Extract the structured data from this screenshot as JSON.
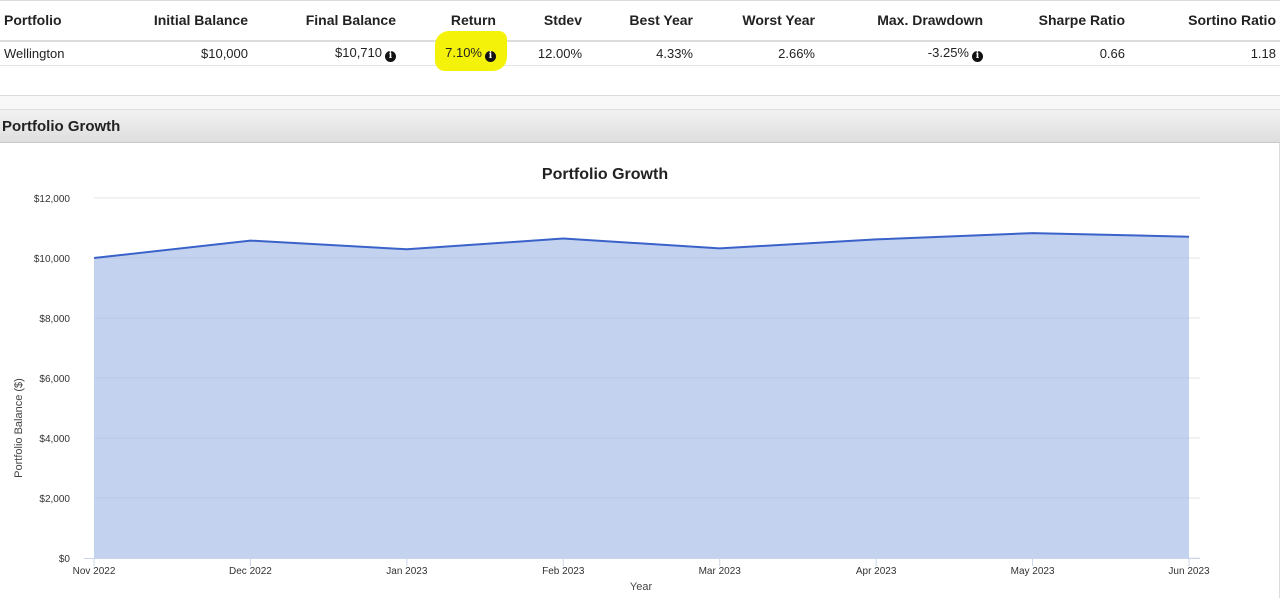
{
  "table": {
    "headers": [
      "Portfolio",
      "Initial Balance",
      "Final Balance",
      "Return",
      "Stdev",
      "Best Year",
      "Worst Year",
      "Max. Drawdown",
      "Sharpe Ratio",
      "Sortino Ratio"
    ],
    "row": {
      "portfolio": "Wellington",
      "initial_balance": "$10,000",
      "final_balance": "$10,710",
      "return": "7.10%",
      "stdev": "12.00%",
      "best_year": "4.33%",
      "worst_year": "2.66%",
      "max_drawdown": "-3.25%",
      "sharpe_ratio": "0.66",
      "sortino_ratio": "1.18"
    },
    "info_glyph": "i"
  },
  "section": {
    "title": "Portfolio Growth"
  },
  "colors": {
    "line": "#3a62c9",
    "area": "#c2d2ef",
    "highlight": "#f5f20a"
  },
  "chart_data": {
    "type": "area",
    "title": "Portfolio Growth",
    "xlabel": "Year",
    "ylabel": "Portfolio Balance ($)",
    "x": [
      "Nov 2022",
      "Dec 2022",
      "Jan 2023",
      "Feb 2023",
      "Mar 2023",
      "Apr 2023",
      "May 2023",
      "Jun 2023"
    ],
    "series": [
      {
        "name": "Wellington",
        "values": [
          10000,
          10580,
          10290,
          10650,
          10320,
          10620,
          10830,
          10710
        ]
      }
    ],
    "ylim": [
      0,
      12000
    ],
    "yticks": [
      0,
      2000,
      4000,
      6000,
      8000,
      10000,
      12000
    ],
    "ytick_labels": [
      "$0",
      "$2,000",
      "$4,000",
      "$6,000",
      "$8,000",
      "$10,000",
      "$12,000"
    ],
    "grid": true,
    "legend": "none"
  }
}
